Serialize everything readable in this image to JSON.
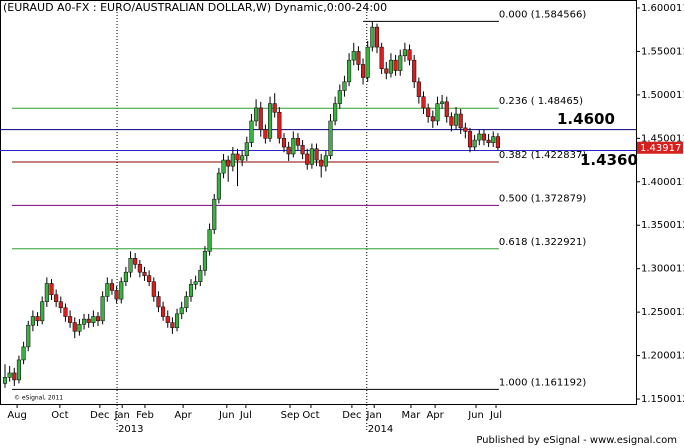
{
  "chart_data": {
    "type": "candlestick",
    "title": "(EURAUD A0-FX : EURO/AUSTRALIAN DOLLAR,W) Dynamic,0:00-24:00",
    "up_color": "#3cb043",
    "down_color": "#d62020",
    "candles": [
      [
        1.168,
        1.19,
        1.163,
        1.175
      ],
      [
        1.175,
        1.188,
        1.17,
        1.18
      ],
      [
        1.18,
        1.186,
        1.165,
        1.172
      ],
      [
        1.172,
        1.2,
        1.168,
        1.195
      ],
      [
        1.195,
        1.216,
        1.19,
        1.21
      ],
      [
        1.21,
        1.24,
        1.205,
        1.235
      ],
      [
        1.235,
        1.252,
        1.228,
        1.245
      ],
      [
        1.245,
        1.25,
        1.234,
        1.24
      ],
      [
        1.24,
        1.268,
        1.236,
        1.262
      ],
      [
        1.262,
        1.29,
        1.256,
        1.283
      ],
      [
        1.283,
        1.288,
        1.264,
        1.27
      ],
      [
        1.27,
        1.276,
        1.256,
        1.262
      ],
      [
        1.262,
        1.268,
        1.249,
        1.255
      ],
      [
        1.255,
        1.26,
        1.239,
        1.245
      ],
      [
        1.245,
        1.252,
        1.232,
        1.238
      ],
      [
        1.238,
        1.244,
        1.22,
        1.228
      ],
      [
        1.228,
        1.242,
        1.223,
        1.236
      ],
      [
        1.236,
        1.248,
        1.23,
        1.242
      ],
      [
        1.242,
        1.248,
        1.232,
        1.238
      ],
      [
        1.238,
        1.252,
        1.233,
        1.245
      ],
      [
        1.245,
        1.25,
        1.234,
        1.24
      ],
      [
        1.24,
        1.274,
        1.236,
        1.268
      ],
      [
        1.268,
        1.29,
        1.262,
        1.283
      ],
      [
        1.283,
        1.288,
        1.27,
        1.275
      ],
      [
        1.275,
        1.28,
        1.26,
        1.265
      ],
      [
        1.265,
        1.29,
        1.26,
        1.285
      ],
      [
        1.285,
        1.302,
        1.28,
        1.296
      ],
      [
        1.296,
        1.32,
        1.29,
        1.312
      ],
      [
        1.312,
        1.318,
        1.3,
        1.305
      ],
      [
        1.305,
        1.31,
        1.29,
        1.296
      ],
      [
        1.296,
        1.302,
        1.286,
        1.292
      ],
      [
        1.292,
        1.298,
        1.28,
        1.285
      ],
      [
        1.285,
        1.29,
        1.262,
        1.268
      ],
      [
        1.268,
        1.274,
        1.25,
        1.256
      ],
      [
        1.256,
        1.262,
        1.24,
        1.245
      ],
      [
        1.245,
        1.252,
        1.232,
        1.238
      ],
      [
        1.238,
        1.244,
        1.225,
        1.232
      ],
      [
        1.232,
        1.254,
        1.228,
        1.248
      ],
      [
        1.248,
        1.262,
        1.242,
        1.255
      ],
      [
        1.255,
        1.274,
        1.25,
        1.268
      ],
      [
        1.268,
        1.288,
        1.262,
        1.282
      ],
      [
        1.282,
        1.292,
        1.276,
        1.285
      ],
      [
        1.285,
        1.304,
        1.28,
        1.298
      ],
      [
        1.298,
        1.326,
        1.292,
        1.32
      ],
      [
        1.32,
        1.352,
        1.315,
        1.345
      ],
      [
        1.345,
        1.386,
        1.34,
        1.38
      ],
      [
        1.38,
        1.416,
        1.375,
        1.41
      ],
      [
        1.41,
        1.432,
        1.404,
        1.425
      ],
      [
        1.425,
        1.43,
        1.4,
        1.418
      ],
      [
        1.418,
        1.44,
        1.412,
        1.432
      ],
      [
        1.432,
        1.438,
        1.395,
        1.425
      ],
      [
        1.425,
        1.436,
        1.418,
        1.43
      ],
      [
        1.43,
        1.452,
        1.424,
        1.445
      ],
      [
        1.445,
        1.478,
        1.44,
        1.47
      ],
      [
        1.47,
        1.495,
        1.464,
        1.485
      ],
      [
        1.485,
        1.492,
        1.452,
        1.46
      ],
      [
        1.46,
        1.466,
        1.444,
        1.45
      ],
      [
        1.45,
        1.498,
        1.446,
        1.49
      ],
      [
        1.49,
        1.502,
        1.474,
        1.48
      ],
      [
        1.48,
        1.486,
        1.444,
        1.45
      ],
      [
        1.45,
        1.456,
        1.434,
        1.44
      ],
      [
        1.44,
        1.446,
        1.424,
        1.432
      ],
      [
        1.432,
        1.458,
        1.428,
        1.45
      ],
      [
        1.45,
        1.456,
        1.436,
        1.442
      ],
      [
        1.442,
        1.448,
        1.426,
        1.432
      ],
      [
        1.432,
        1.438,
        1.414,
        1.42
      ],
      [
        1.42,
        1.444,
        1.415,
        1.438
      ],
      [
        1.438,
        1.444,
        1.418,
        1.425
      ],
      [
        1.425,
        1.432,
        1.405,
        1.418
      ],
      [
        1.418,
        1.436,
        1.412,
        1.43
      ],
      [
        1.43,
        1.478,
        1.426,
        1.47
      ],
      [
        1.47,
        1.498,
        1.465,
        1.49
      ],
      [
        1.49,
        1.512,
        1.484,
        1.505
      ],
      [
        1.505,
        1.522,
        1.498,
        1.515
      ],
      [
        1.515,
        1.548,
        1.51,
        1.54
      ],
      [
        1.54,
        1.56,
        1.534,
        1.55
      ],
      [
        1.55,
        1.556,
        1.528,
        1.535
      ],
      [
        1.535,
        1.542,
        1.512,
        1.52
      ],
      [
        1.52,
        1.562,
        1.515,
        1.555
      ],
      [
        1.555,
        1.584566,
        1.55,
        1.578
      ],
      [
        1.578,
        1.582,
        1.548,
        1.555
      ],
      [
        1.555,
        1.56,
        1.524,
        1.53
      ],
      [
        1.53,
        1.538,
        1.518,
        1.525
      ],
      [
        1.525,
        1.548,
        1.52,
        1.54
      ],
      [
        1.54,
        1.546,
        1.522,
        1.528
      ],
      [
        1.528,
        1.552,
        1.522,
        1.545
      ],
      [
        1.545,
        1.56,
        1.538,
        1.552
      ],
      [
        1.552,
        1.558,
        1.534,
        1.54
      ],
      [
        1.54,
        1.546,
        1.508,
        1.515
      ],
      [
        1.515,
        1.52,
        1.49,
        1.498
      ],
      [
        1.498,
        1.504,
        1.478,
        1.485
      ],
      [
        1.485,
        1.49,
        1.468,
        1.475
      ],
      [
        1.475,
        1.482,
        1.462,
        1.47
      ],
      [
        1.47,
        1.498,
        1.465,
        1.49
      ],
      [
        1.49,
        1.5,
        1.484,
        1.492
      ],
      [
        1.492,
        1.498,
        1.468,
        1.475
      ],
      [
        1.475,
        1.48,
        1.458,
        1.465
      ],
      [
        1.465,
        1.486,
        1.46,
        1.478
      ],
      [
        1.478,
        1.484,
        1.455,
        1.462
      ],
      [
        1.462,
        1.468,
        1.45,
        1.458
      ],
      [
        1.458,
        1.462,
        1.434,
        1.44
      ],
      [
        1.44,
        1.454,
        1.436,
        1.448
      ],
      [
        1.448,
        1.46,
        1.442,
        1.455
      ],
      [
        1.455,
        1.46,
        1.442,
        1.448
      ],
      [
        1.448,
        1.455,
        1.44,
        1.445
      ],
      [
        1.445,
        1.458,
        1.44,
        1.452
      ],
      [
        1.452,
        1.456,
        1.436,
        1.43917
      ]
    ],
    "xlim": [
      -1.075,
      135.7
    ],
    "xticks": [
      {
        "value": 2.6,
        "label": "Aug"
      },
      {
        "value": 11.8,
        "label": "Oct"
      },
      {
        "value": 20.4,
        "label": "Dec"
      },
      {
        "value": 25.2,
        "label": "Jan"
      },
      {
        "value": 30.1,
        "label": "Feb"
      },
      {
        "value": 38.3,
        "label": "Apr"
      },
      {
        "value": 47.7,
        "label": "Jun"
      },
      {
        "value": 51.8,
        "label": "Jul"
      },
      {
        "value": 61.3,
        "label": "Sep"
      },
      {
        "value": 65.8,
        "label": "Oct"
      },
      {
        "value": 74.6,
        "label": "Dec"
      },
      {
        "value": 79.4,
        "label": "Jan"
      },
      {
        "value": 87.3,
        "label": "Mar"
      },
      {
        "value": 92.5,
        "label": "Apr"
      },
      {
        "value": 101.3,
        "label": "Jun"
      },
      {
        "value": 105.6,
        "label": "Jul"
      }
    ],
    "years": [
      {
        "value": 24.1,
        "label": "2013"
      },
      {
        "value": 77.8,
        "label": "2014"
      }
    ],
    "ylim": [
      1.1443,
      1.6092
    ],
    "yticks": [
      1.600011,
      1.550011,
      1.500011,
      1.450011,
      1.400011,
      1.350012,
      1.300013,
      1.250013,
      1.200012,
      1.150012
    ],
    "fibonacci": [
      {
        "value": 1.584566,
        "label": "0.000 (1.584566)",
        "color": "#000000"
      },
      {
        "value": 1.48465,
        "label": "0.236 ( 1.48465)",
        "color": "#2ea02e"
      },
      {
        "value": 1.422837,
        "label": "0.382 (1.422837)",
        "color": "#8b0000"
      },
      {
        "value": 1.372879,
        "label": "0.500 (1.372879)",
        "color": "#800080"
      },
      {
        "value": 1.322921,
        "label": "0.618 (1.322921)",
        "color": "#2ea02e"
      },
      {
        "value": 1.161192,
        "label": "1.000 (1.161192)",
        "color": "#000000"
      }
    ],
    "levels": [
      {
        "value": 1.46,
        "label": "1.4600",
        "color": "#000080"
      },
      {
        "value": 1.436,
        "label": "1.4360",
        "color": "#2828c8"
      }
    ],
    "last_price": 1.43917,
    "copyright": "© eSignal, 2011",
    "publisher": "Published by eSignal - www.esignal.com"
  }
}
